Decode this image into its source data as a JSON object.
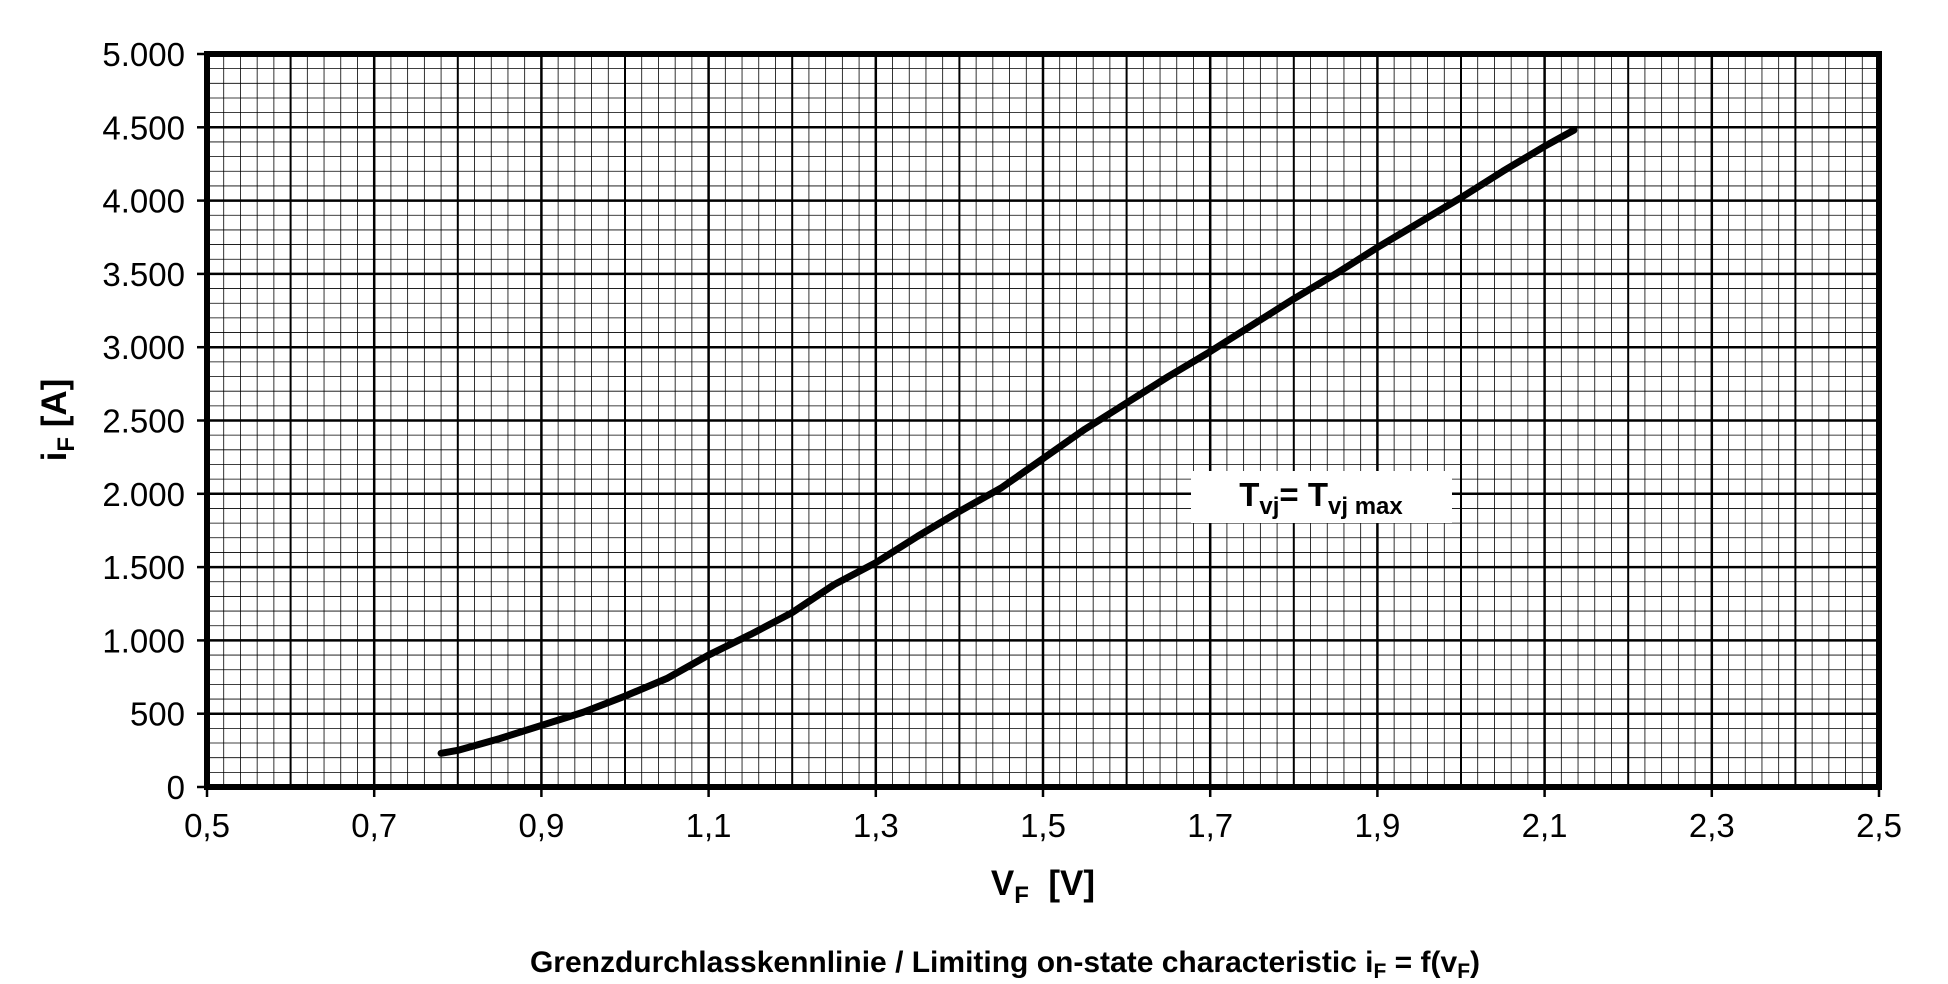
{
  "chart_data": {
    "type": "line",
    "x": [
      0.78,
      0.8,
      0.85,
      0.9,
      0.95,
      1.0,
      1.05,
      1.1,
      1.15,
      1.2,
      1.25,
      1.3,
      1.35,
      1.4,
      1.45,
      1.5,
      1.55,
      1.6,
      1.65,
      1.7,
      1.75,
      1.8,
      1.85,
      1.9,
      1.95,
      2.0,
      2.05,
      2.1,
      2.135
    ],
    "values": [
      230,
      250,
      330,
      420,
      510,
      620,
      740,
      900,
      1040,
      1190,
      1380,
      1530,
      1710,
      1880,
      2040,
      2240,
      2440,
      2620,
      2800,
      2970,
      3150,
      3330,
      3500,
      3680,
      3850,
      4020,
      4200,
      4370,
      4480
    ],
    "color": "#000000",
    "xlim": [
      0.5,
      2.5
    ],
    "xticks": [
      {
        "value": 0.5,
        "label": "0,5"
      },
      {
        "value": 0.7,
        "label": "0,7"
      },
      {
        "value": 0.9,
        "label": "0,9"
      },
      {
        "value": 1.1,
        "label": "1,1"
      },
      {
        "value": 1.3,
        "label": "1,3"
      },
      {
        "value": 1.5,
        "label": "1,5"
      },
      {
        "value": 1.7,
        "label": "1,7"
      },
      {
        "value": 1.9,
        "label": "1,9"
      },
      {
        "value": 2.1,
        "label": "2,1"
      },
      {
        "value": 2.3,
        "label": "2,3"
      },
      {
        "value": 2.5,
        "label": "2,5"
      }
    ],
    "ylim": [
      0,
      5000
    ],
    "yticks": [
      0,
      500,
      {
        "value": 1000,
        "label": "1.000"
      },
      {
        "value": 1500,
        "label": "1.500"
      },
      {
        "value": 2000,
        "label": "2.000"
      },
      {
        "value": 2500,
        "label": "2.500"
      },
      {
        "value": 3000,
        "label": "3.000"
      },
      {
        "value": 3500,
        "label": "3.500"
      },
      {
        "value": 4000,
        "label": "4.000"
      },
      {
        "value": 4500,
        "label": "4.500"
      },
      {
        "value": 5000,
        "label": "5.000"
      }
    ],
    "grid": true,
    "xlabel": [
      "V",
      "F",
      "  [V]"
    ],
    "ylabel": [
      "i",
      "F",
      " [A]"
    ],
    "annotation": [
      "T",
      "vj",
      "= T",
      "vj max"
    ],
    "caption": [
      "Grenzdurchlasskennlinie / Limiting on-state characteristic i",
      "F",
      " = f(v",
      "F",
      ")"
    ]
  }
}
